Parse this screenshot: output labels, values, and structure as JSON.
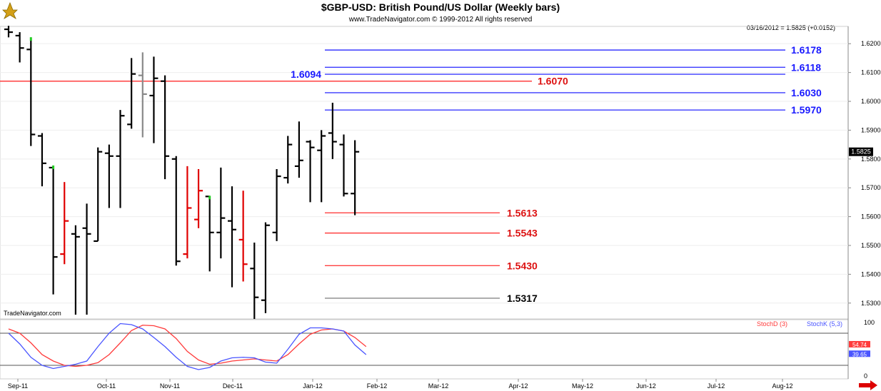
{
  "header": {
    "title": "$GBP-USD:  British Pound/US Dollar  (Weekly bars)",
    "subtitle": "www.TradeNavigator.com © 1999-2012 All rights reserved",
    "quote_line": "03/16/2012 = 1.5825 (+0.0152)",
    "watermark": "TradeNavigator.com"
  },
  "colors": {
    "up_bar": "#000000",
    "down_bar": "#e00000",
    "gray_bar": "#888888",
    "blue_level": "#3a3aff",
    "red_level": "#ff4040",
    "stoch_d": "#ff3b3b",
    "stoch_k": "#4a55ff",
    "oscillator_ref": "#555555"
  },
  "chart_data": [
    {
      "type": "ohlc",
      "title": "$GBP-USD:  British Pound/US Dollar  (Weekly bars)",
      "x_labels": [
        "Sep-11",
        "Oct-11",
        "Nov-11",
        "Dec-11",
        "Jan-12",
        "Feb-12",
        "Mar-12",
        "Apr-12",
        "May-12",
        "Jun-12",
        "Jul-12",
        "Aug-12"
      ],
      "y_ticks": [
        "1.6200",
        "1.6100",
        "1.6000",
        "1.5900",
        "1.5800",
        "1.5700",
        "1.5600",
        "1.5500",
        "1.5400",
        "1.5300"
      ],
      "ylim": [
        1.5245,
        1.626
      ],
      "last_price_label": "1.5825",
      "bars": [
        {
          "o": 1.625,
          "h": 1.6262,
          "l": 1.6222,
          "c": 1.624,
          "color": "black"
        },
        {
          "o": 1.6228,
          "h": 1.624,
          "l": 1.6135,
          "c": 1.6185,
          "color": "black"
        },
        {
          "o": 1.618,
          "h": 1.622,
          "l": 1.5845,
          "c": 1.5885,
          "color": "black",
          "mark": "green"
        },
        {
          "o": 1.588,
          "h": 1.589,
          "l": 1.5705,
          "c": 1.5785,
          "color": "black"
        },
        {
          "o": 1.577,
          "h": 1.5775,
          "l": 1.533,
          "c": 1.546,
          "color": "black",
          "mark": "green"
        },
        {
          "o": 1.547,
          "h": 1.572,
          "l": 1.5435,
          "c": 1.5585,
          "color": "red"
        },
        {
          "o": 1.554,
          "h": 1.557,
          "l": 1.526,
          "c": 1.553,
          "color": "black"
        },
        {
          "o": 1.556,
          "h": 1.5645,
          "l": 1.526,
          "c": 1.554,
          "color": "black"
        },
        {
          "o": 1.5515,
          "h": 1.584,
          "l": 1.5515,
          "c": 1.5825,
          "color": "black"
        },
        {
          "o": 1.582,
          "h": 1.585,
          "l": 1.563,
          "c": 1.581,
          "color": "black"
        },
        {
          "o": 1.581,
          "h": 1.597,
          "l": 1.563,
          "c": 1.595,
          "color": "black"
        },
        {
          "o": 1.592,
          "h": 1.615,
          "l": 1.5905,
          "c": 1.6095,
          "color": "black"
        },
        {
          "o": 1.609,
          "h": 1.617,
          "l": 1.5875,
          "c": 1.6025,
          "color": "gray"
        },
        {
          "o": 1.602,
          "h": 1.6155,
          "l": 1.5855,
          "c": 1.608,
          "color": "black"
        },
        {
          "o": 1.607,
          "h": 1.609,
          "l": 1.573,
          "c": 1.581,
          "color": "black"
        },
        {
          "o": 1.58,
          "h": 1.581,
          "l": 1.543,
          "c": 1.5445,
          "color": "black"
        },
        {
          "o": 1.547,
          "h": 1.5775,
          "l": 1.5455,
          "c": 1.563,
          "color": "red"
        },
        {
          "o": 1.559,
          "h": 1.5765,
          "l": 1.556,
          "c": 1.569,
          "color": "red"
        },
        {
          "o": 1.567,
          "h": 1.567,
          "l": 1.541,
          "c": 1.5545,
          "color": "black",
          "mark": "green"
        },
        {
          "o": 1.5545,
          "h": 1.577,
          "l": 1.5455,
          "c": 1.5595,
          "color": "black"
        },
        {
          "o": 1.5585,
          "h": 1.5705,
          "l": 1.5355,
          "c": 1.5555,
          "color": "black"
        },
        {
          "o": 1.552,
          "h": 1.569,
          "l": 1.5375,
          "c": 1.5435,
          "color": "red"
        },
        {
          "o": 1.542,
          "h": 1.551,
          "l": 1.5245,
          "c": 1.532,
          "color": "black"
        },
        {
          "o": 1.531,
          "h": 1.558,
          "l": 1.5265,
          "c": 1.557,
          "color": "black"
        },
        {
          "o": 1.5545,
          "h": 1.5765,
          "l": 1.5515,
          "c": 1.574,
          "color": "black"
        },
        {
          "o": 1.5735,
          "h": 1.588,
          "l": 1.5715,
          "c": 1.585,
          "color": "black"
        },
        {
          "o": 1.5775,
          "h": 1.593,
          "l": 1.5735,
          "c": 1.5795,
          "color": "black"
        },
        {
          "o": 1.586,
          "h": 1.5865,
          "l": 1.565,
          "c": 1.584,
          "color": "black"
        },
        {
          "o": 1.583,
          "h": 1.59,
          "l": 1.565,
          "c": 1.588,
          "color": "black"
        },
        {
          "o": 1.589,
          "h": 1.5995,
          "l": 1.58,
          "c": 1.586,
          "color": "black"
        },
        {
          "o": 1.585,
          "h": 1.5885,
          "l": 1.567,
          "c": 1.568,
          "color": "black"
        },
        {
          "o": 1.568,
          "h": 1.5865,
          "l": 1.5605,
          "c": 1.5825,
          "color": "black"
        }
      ],
      "levels": [
        {
          "value": 1.6178,
          "label": "1.6178",
          "color": "blue",
          "label_side": "right"
        },
        {
          "value": 1.6118,
          "label": "1.6118",
          "color": "blue",
          "label_side": "right"
        },
        {
          "value": 1.6094,
          "label": "1.6094",
          "color": "blue",
          "label_side": "left"
        },
        {
          "value": 1.607,
          "label": "1.6070",
          "color": "red",
          "label_side": "right"
        },
        {
          "value": 1.603,
          "label": "1.6030",
          "color": "blue",
          "label_side": "right"
        },
        {
          "value": 1.597,
          "label": "1.5970",
          "color": "blue",
          "label_side": "right"
        },
        {
          "value": 1.5613,
          "label": "1.5613",
          "color": "red",
          "label_side": "right"
        },
        {
          "value": 1.5543,
          "label": "1.5543",
          "color": "red",
          "label_side": "right"
        },
        {
          "value": 1.543,
          "label": "1.5430",
          "color": "red",
          "label_side": "right"
        },
        {
          "value": 1.5317,
          "label": "1.5317",
          "color": "gray",
          "label_side": "right"
        }
      ]
    },
    {
      "type": "line",
      "legend": [
        "StochD (3)",
        "StochK (5,3)"
      ],
      "y_ticks": [
        "100",
        "0"
      ],
      "ylim": [
        0,
        100
      ],
      "reference_levels": [
        80,
        20
      ],
      "last_values": {
        "stoch_d": "54.74",
        "stoch_k": "39.65"
      },
      "series": [
        {
          "name": "StochD (3)",
          "values": [
            88,
            80,
            62,
            40,
            28,
            20,
            18,
            20,
            25,
            40,
            62,
            85,
            95,
            94,
            88,
            70,
            46,
            30,
            22,
            24,
            28,
            30,
            32,
            30,
            28,
            40,
            60,
            78,
            86,
            88,
            84,
            72,
            55
          ]
        },
        {
          "name": "StochK (5,3)",
          "values": [
            80,
            60,
            35,
            20,
            14,
            18,
            22,
            28,
            55,
            80,
            98,
            96,
            88,
            72,
            55,
            35,
            18,
            12,
            16,
            28,
            34,
            35,
            34,
            26,
            24,
            50,
            78,
            90,
            90,
            88,
            84,
            58,
            40
          ]
        }
      ]
    }
  ]
}
